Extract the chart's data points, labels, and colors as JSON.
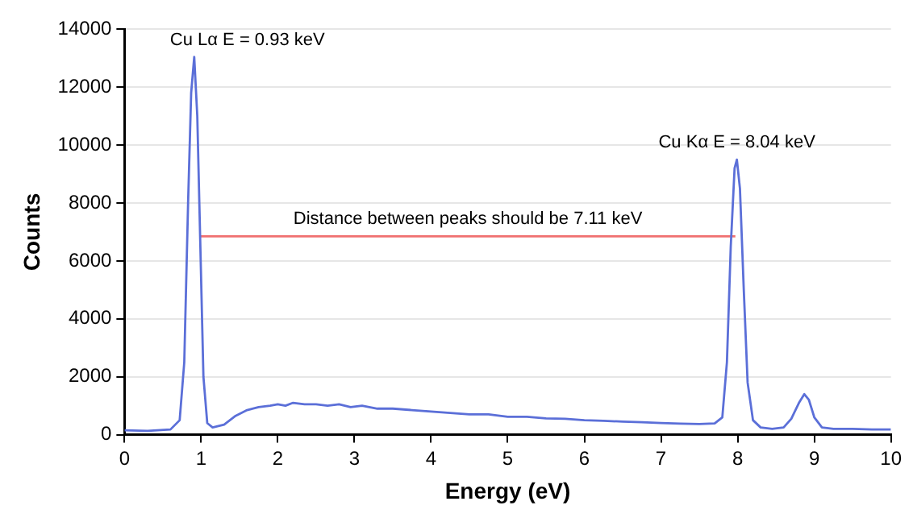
{
  "chart_data": {
    "type": "line",
    "xlabel": "Energy (eV)",
    "ylabel": "Counts",
    "xlim": [
      0,
      10
    ],
    "xticks": [
      0,
      1,
      2,
      3,
      4,
      5,
      6,
      7,
      8,
      9,
      10
    ],
    "ylim": [
      0,
      14000
    ],
    "yticks": [
      0,
      2000,
      4000,
      6000,
      8000,
      10000,
      12000,
      14000
    ],
    "grid": "y",
    "legend": false,
    "marker": "none",
    "line_style": "solid",
    "series": [
      {
        "color": "#5b6fd8",
        "x": [
          0,
          0.3,
          0.6,
          0.72,
          0.78,
          0.83,
          0.87,
          0.91,
          0.95,
          0.99,
          1.03,
          1.08,
          1.15,
          1.3,
          1.45,
          1.6,
          1.75,
          1.9,
          2.0,
          2.1,
          2.2,
          2.35,
          2.5,
          2.65,
          2.8,
          2.95,
          3.1,
          3.3,
          3.5,
          3.75,
          4.0,
          4.25,
          4.5,
          4.75,
          5.0,
          5.25,
          5.5,
          5.75,
          6.0,
          6.25,
          6.5,
          6.75,
          7.0,
          7.25,
          7.5,
          7.7,
          7.8,
          7.86,
          7.91,
          7.96,
          7.99,
          8.03,
          8.08,
          8.13,
          8.2,
          8.3,
          8.45,
          8.6,
          8.7,
          8.8,
          8.87,
          8.93,
          9.0,
          9.1,
          9.25,
          9.5,
          9.75,
          10
        ],
        "values": [
          150,
          130,
          180,
          500,
          2500,
          8000,
          11800,
          13050,
          11000,
          6500,
          2000,
          400,
          250,
          350,
          650,
          850,
          950,
          1000,
          1050,
          1000,
          1100,
          1050,
          1050,
          1000,
          1050,
          950,
          1000,
          900,
          900,
          850,
          800,
          750,
          700,
          700,
          620,
          620,
          560,
          550,
          500,
          480,
          450,
          430,
          400,
          380,
          370,
          390,
          600,
          2500,
          6500,
          9200,
          9500,
          8500,
          5000,
          1800,
          500,
          250,
          200,
          250,
          550,
          1100,
          1400,
          1200,
          600,
          250,
          200,
          200,
          180,
          180
        ]
      },
      {
        "color": "#f07070",
        "x": [
          0.99,
          7.97
        ],
        "values": [
          6850,
          6850
        ]
      }
    ],
    "annotations": [
      {
        "text": "Cu Lα E = 0.93 keV",
        "x": 0.91,
        "y": 13050
      },
      {
        "text": "Cu Kα E = 8.04 keV",
        "x": 7.99,
        "y": 9500
      },
      {
        "text": "Distance between peaks should be 7.11 keV",
        "x": 4.48,
        "y": 6850
      }
    ]
  }
}
